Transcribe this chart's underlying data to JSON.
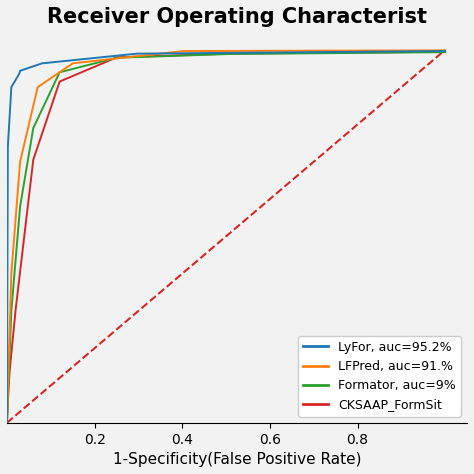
{
  "title": "Receiver Operating Characterist",
  "xlabel": "1-Specificity(False Positive Rate)",
  "diagonal_color": "#d62728",
  "background_color": "#f2f2f2",
  "lyfor_color": "#1f77b4",
  "lfpred_color": "#ff7f0e",
  "formator_color": "#2ca02c",
  "cksaap_color": "#d62728",
  "xlim": [
    0.0,
    1.05
  ],
  "ylim": [
    0.0,
    1.05
  ],
  "xticks": [
    0.2,
    0.4,
    0.6,
    0.8
  ],
  "title_fontsize": 15,
  "label_fontsize": 11,
  "tick_fontsize": 10,
  "legend_fontsize": 9,
  "legend_labels": [
    "LyFor, auc=95.2%",
    "LFPred, auc=91.%",
    "Formator, auc=9%",
    "CKSAAP_FormSit"
  ]
}
